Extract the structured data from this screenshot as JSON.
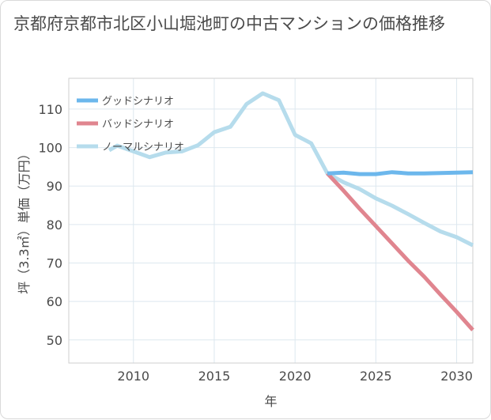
{
  "chart_data": {
    "type": "line",
    "title": "京都府京都市北区小山堀池町の中古マンションの価格推移",
    "xlabel": "年",
    "ylabel": "坪（3.3㎡）単価（万円）",
    "xlim": [
      2006,
      2031
    ],
    "ylim": [
      44,
      118
    ],
    "xticks": [
      2010,
      2015,
      2020,
      2025,
      2030
    ],
    "yticks": [
      50,
      60,
      70,
      80,
      90,
      100,
      110
    ],
    "grid": true,
    "legend_position": "top-left",
    "series": [
      {
        "name": "グッドシナリオ",
        "color": "#6cb7ec",
        "x": [
          2022,
          2023,
          2024,
          2025,
          2026,
          2027,
          2028,
          2029,
          2030,
          2031
        ],
        "y": [
          93.3,
          93.5,
          93.1,
          93.1,
          93.6,
          93.3,
          93.3,
          93.4,
          93.5,
          93.6
        ]
      },
      {
        "name": "バッドシナリオ",
        "color": "#e0858f",
        "x": [
          2022,
          2023,
          2024,
          2025,
          2026,
          2027,
          2028,
          2029,
          2030,
          2031
        ],
        "y": [
          93.3,
          88.8,
          84.1,
          79.6,
          75.1,
          70.6,
          66.4,
          61.8,
          57.3,
          52.6
        ]
      },
      {
        "name": "ノーマルシナリオ",
        "color": "#b6dcec",
        "x": [
          2008.5,
          2009,
          2010,
          2011,
          2012,
          2013,
          2014,
          2015,
          2016,
          2017,
          2018,
          2019,
          2020,
          2021,
          2022,
          2023,
          2024,
          2025,
          2026,
          2027,
          2028,
          2029,
          2030,
          2031
        ],
        "y": [
          99.3,
          100.5,
          99.0,
          97.5,
          98.7,
          99.0,
          100.6,
          104.0,
          105.4,
          111.3,
          114.1,
          112.3,
          103.3,
          101.1,
          93.3,
          91.0,
          89.2,
          86.8,
          84.9,
          82.7,
          80.4,
          78.2,
          76.7,
          74.6
        ]
      }
    ]
  }
}
